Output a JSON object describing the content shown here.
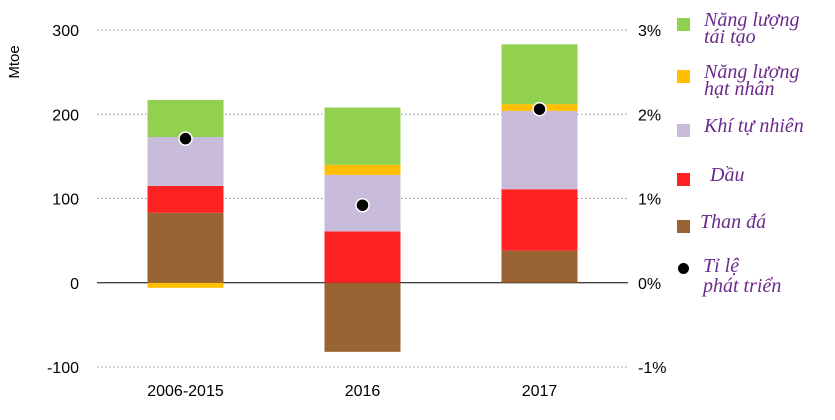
{
  "chart_data": {
    "type": "bar",
    "stacked": true,
    "categories": [
      "2006-2015",
      "2016",
      "2017"
    ],
    "ylabel": "Mtoe",
    "ylim": [
      -100,
      300
    ],
    "yticks": [
      -100,
      0,
      100,
      200,
      300
    ],
    "y2ticks": [
      "-1%",
      "0%",
      "1%",
      "2%",
      "3%"
    ],
    "grid": true,
    "legend_position": "right",
    "series": [
      {
        "name": "Than đá",
        "color": "#9a6334",
        "values": [
          83,
          -82,
          38
        ]
      },
      {
        "name": "Dầu",
        "color": "#ff2222",
        "values": [
          32,
          61,
          73
        ]
      },
      {
        "name": "Khí tự nhiên",
        "color": "#c9bcda",
        "values": [
          58,
          67,
          93
        ]
      },
      {
        "name": "Năng lượng\nhạt nhân",
        "color": "#ffbf00",
        "values": [
          -6,
          12,
          8
        ]
      },
      {
        "name": "Năng lượng\ntái tạo",
        "color": "#92d050",
        "values": [
          44,
          68,
          71
        ]
      }
    ],
    "growth": {
      "name": "Tỉ lệ\nphát triển",
      "values": [
        1.71,
        0.92,
        2.06
      ]
    }
  }
}
